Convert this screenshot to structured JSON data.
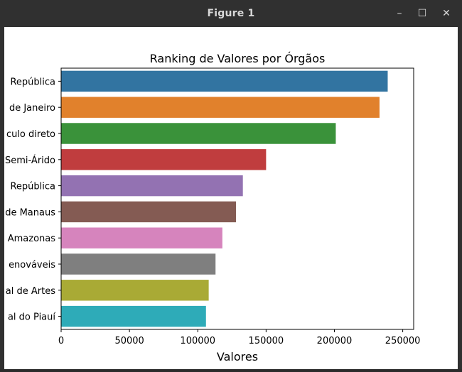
{
  "window": {
    "title": "Figure 1",
    "controls": {
      "minimize": "–",
      "maximize": "☐",
      "close": "✕"
    }
  },
  "chart_data": {
    "type": "bar",
    "orientation": "horizontal",
    "title": "Ranking de Valores por Órgãos",
    "xlabel": "Valores",
    "ylabel": "",
    "xlim": [
      0,
      258000
    ],
    "xticks": [
      0,
      50000,
      100000,
      150000,
      200000,
      250000
    ],
    "categories": [
      "República",
      "de Janeiro",
      "culo direto",
      "Semi-Árido",
      "República",
      "de Manaus",
      "Amazonas",
      "enováveis",
      "al de Artes",
      "al do Piauí"
    ],
    "values": [
      239000,
      233000,
      201000,
      150000,
      133000,
      128000,
      118000,
      113000,
      108000,
      106000
    ],
    "colors": [
      "#3274a1",
      "#e1812c",
      "#3a923a",
      "#c03d3e",
      "#9372b2",
      "#845b53",
      "#d684bd",
      "#7f7f7f",
      "#a9aa35",
      "#2eabb8"
    ],
    "grid": false,
    "legend": "none"
  }
}
